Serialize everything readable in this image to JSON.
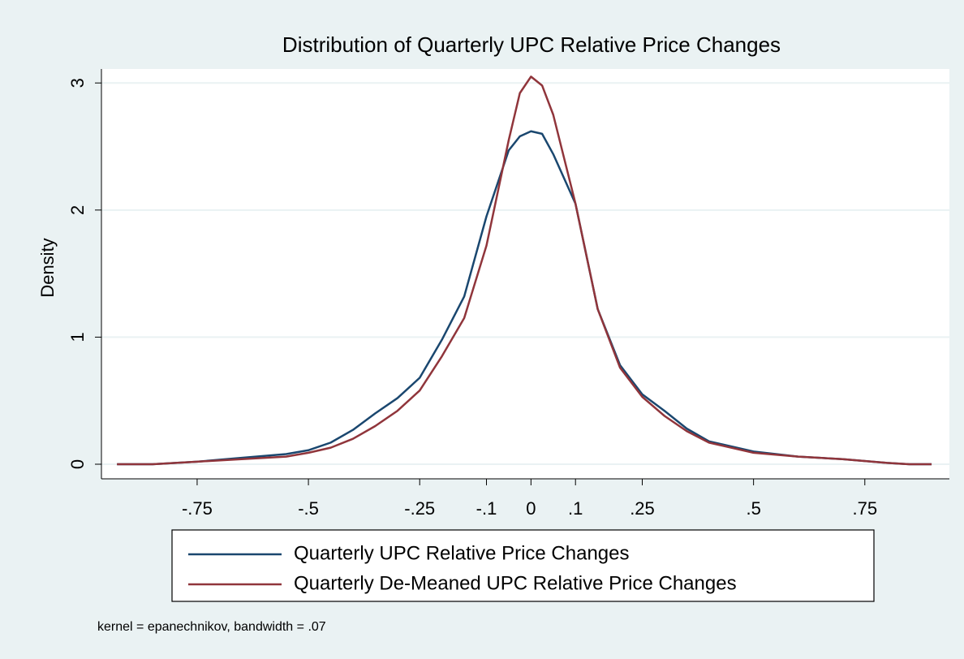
{
  "chart_data": {
    "type": "line",
    "title": "Distribution of Quarterly UPC Relative Price Changes",
    "ylabel": "Density",
    "note": "kernel = epanechnikov, bandwidth = .07",
    "x": [
      -0.93,
      -0.85,
      -0.75,
      -0.65,
      -0.55,
      -0.5,
      -0.45,
      -0.4,
      -0.35,
      -0.3,
      -0.25,
      -0.2,
      -0.15,
      -0.1,
      -0.05,
      -0.025,
      0,
      0.025,
      0.05,
      0.1,
      0.15,
      0.2,
      0.25,
      0.3,
      0.35,
      0.4,
      0.5,
      0.6,
      0.7,
      0.8,
      0.85,
      0.9
    ],
    "series": [
      {
        "name": "Quarterly UPC Relative Price Changes",
        "color": "#1a476f",
        "values": [
          0,
          0,
          0.02,
          0.05,
          0.08,
          0.11,
          0.17,
          0.27,
          0.4,
          0.52,
          0.68,
          0.98,
          1.32,
          1.95,
          2.47,
          2.58,
          2.62,
          2.6,
          2.44,
          2.05,
          1.22,
          0.78,
          0.55,
          0.42,
          0.28,
          0.18,
          0.1,
          0.06,
          0.04,
          0.01,
          0,
          0
        ]
      },
      {
        "name": "Quarterly De-Meaned UPC Relative Price Changes",
        "color": "#90353b",
        "values": [
          0,
          0,
          0.02,
          0.04,
          0.06,
          0.09,
          0.13,
          0.2,
          0.3,
          0.42,
          0.58,
          0.85,
          1.15,
          1.72,
          2.55,
          2.92,
          3.05,
          2.98,
          2.75,
          2.05,
          1.22,
          0.76,
          0.53,
          0.38,
          0.26,
          0.17,
          0.09,
          0.06,
          0.04,
          0.01,
          0,
          0
        ]
      }
    ],
    "xlim": [
      -0.965,
      0.94
    ],
    "xticks": [
      {
        "value": -0.75,
        "label": "-.75"
      },
      {
        "value": -0.5,
        "label": "-.5"
      },
      {
        "value": -0.25,
        "label": "-.25"
      },
      {
        "value": -0.1,
        "label": "-.1"
      },
      0,
      {
        "value": 0.1,
        "label": ".1"
      },
      {
        "value": 0.25,
        "label": ".25"
      },
      {
        "value": 0.5,
        "label": ".5"
      },
      {
        "value": 0.75,
        "label": ".75"
      }
    ],
    "ylim": [
      -0.115,
      3.11
    ],
    "yticks": [
      0,
      1,
      2,
      3
    ],
    "grid": true,
    "legend": "bottom"
  }
}
